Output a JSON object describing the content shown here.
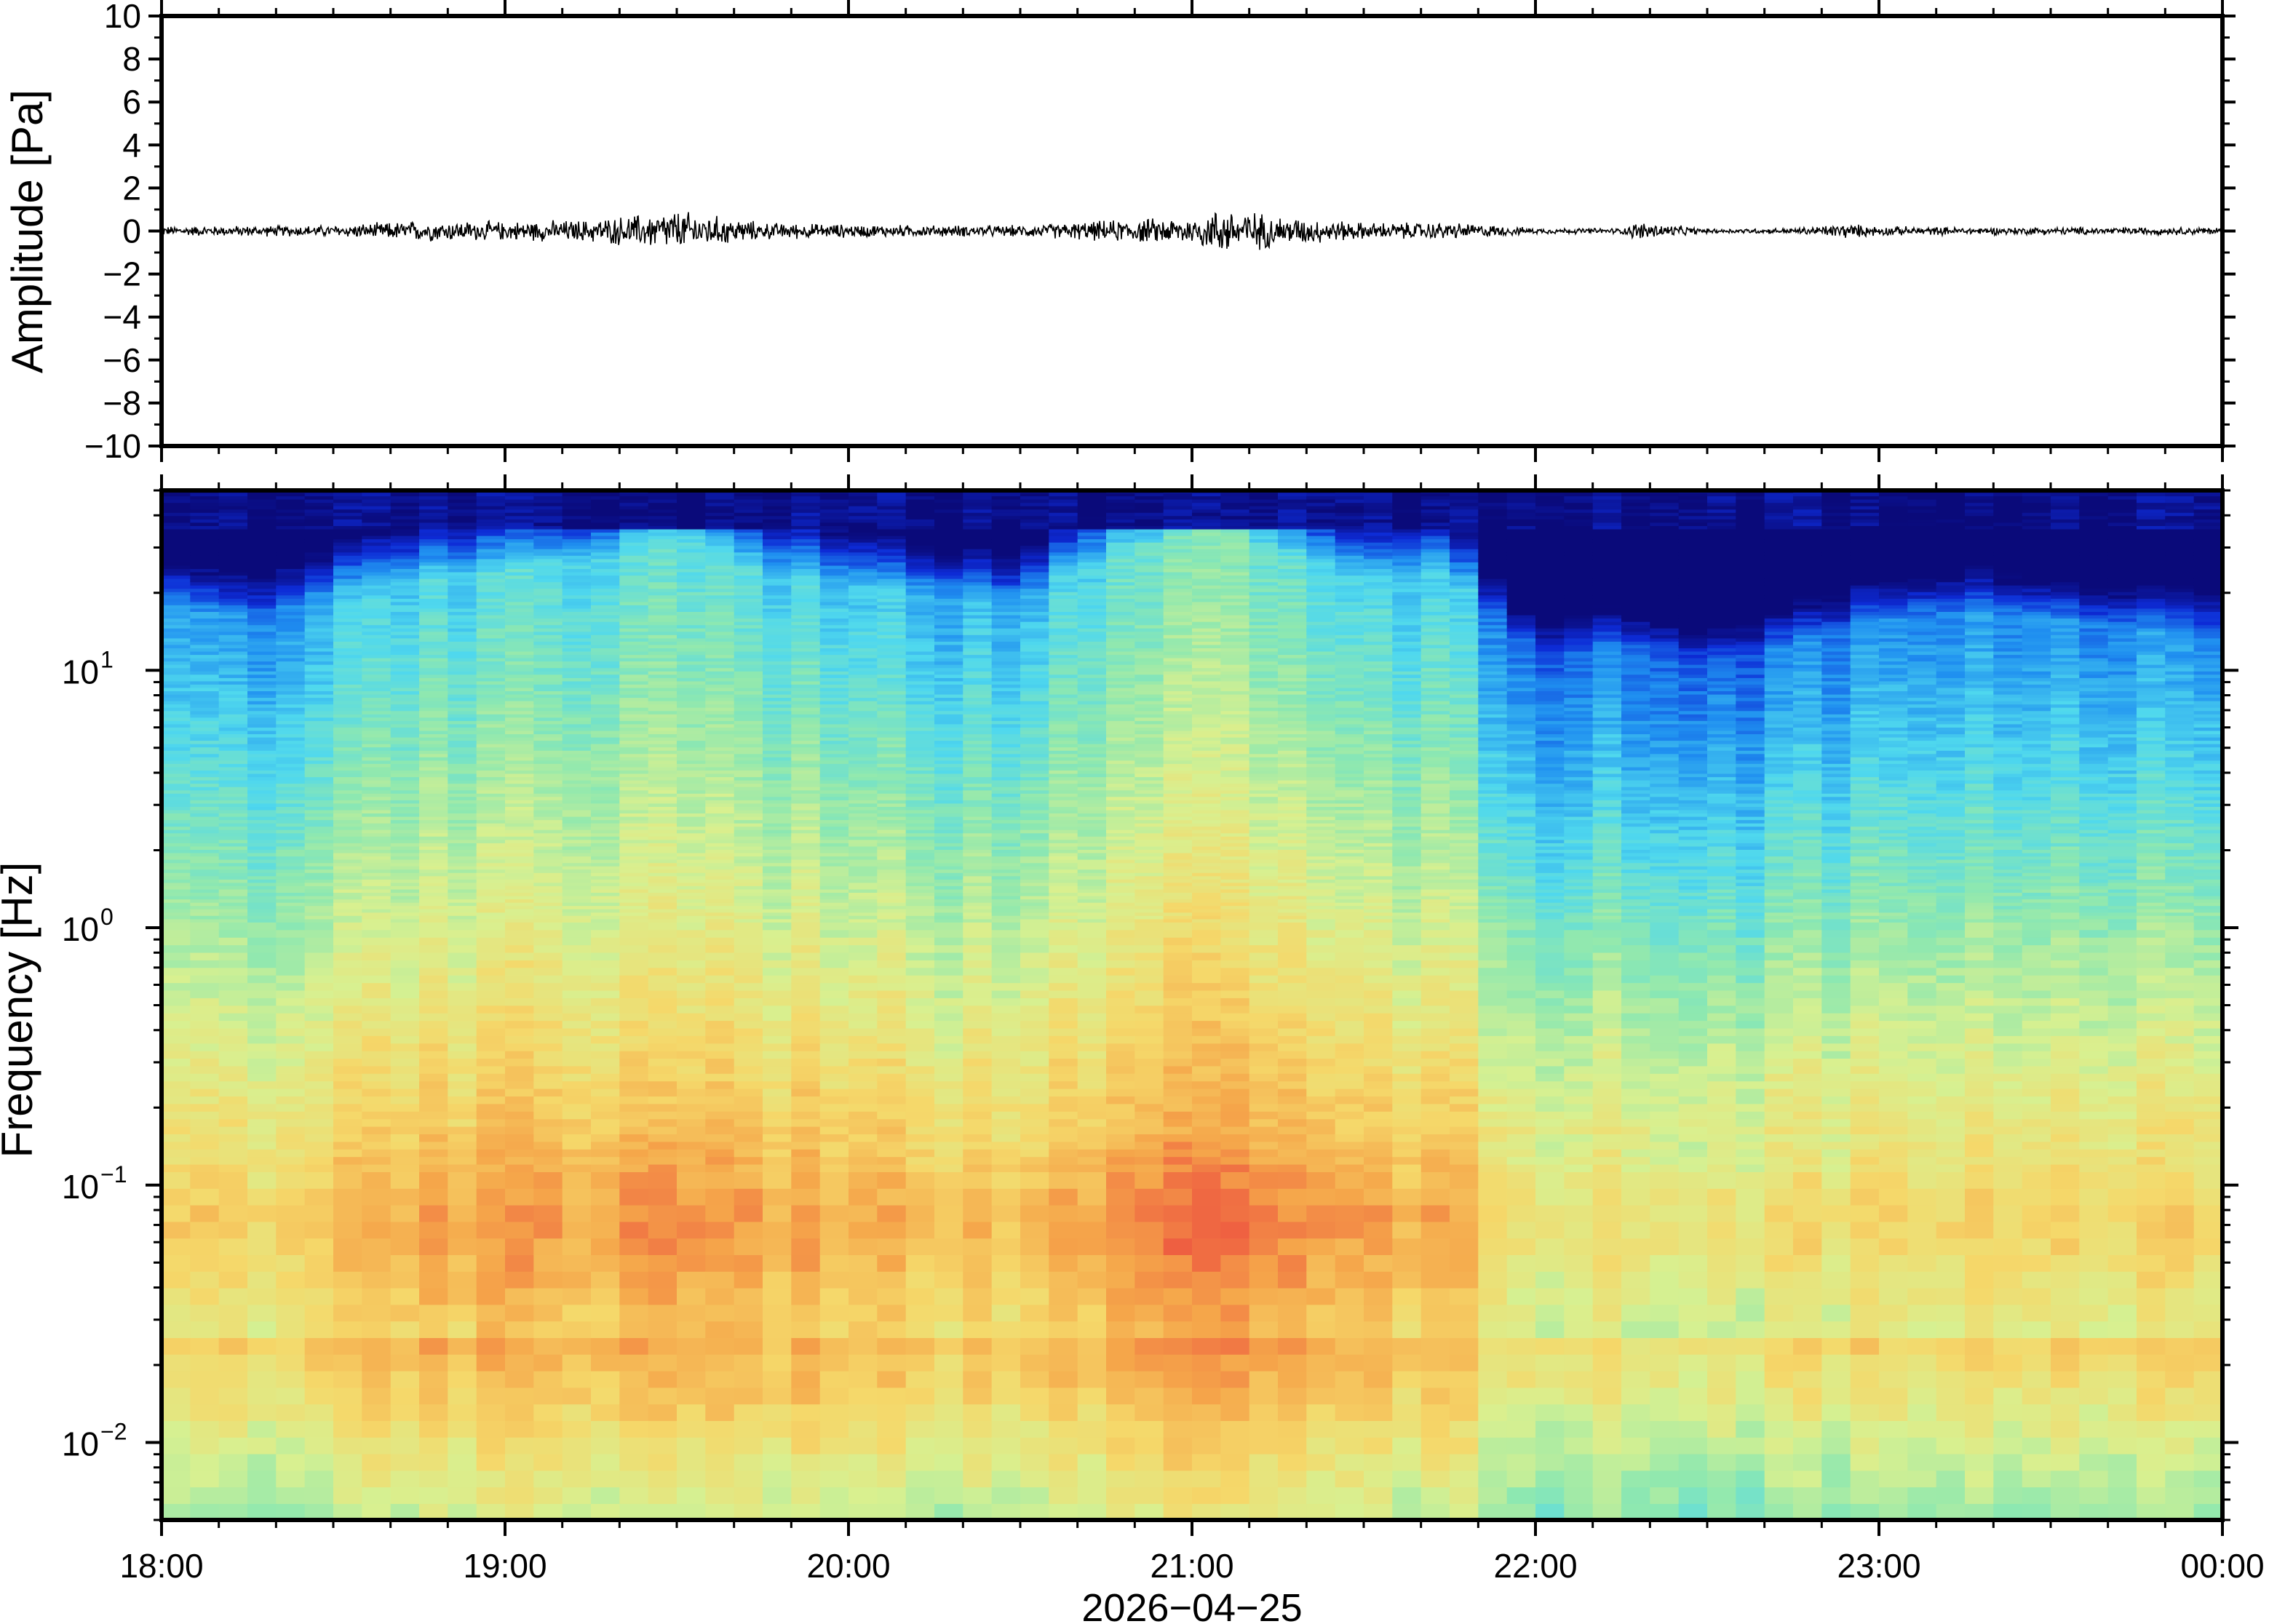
{
  "chart_data": [
    {
      "type": "line",
      "panel": "waveform",
      "ylabel": "Amplitude [Pa]",
      "ylim": [
        -10,
        10
      ],
      "yticks": [
        10,
        8,
        6,
        4,
        2,
        0,
        -2,
        -4,
        -6,
        -8,
        -10
      ],
      "ytick_labels": [
        "10",
        "8",
        "6",
        "4",
        "2",
        "0",
        "−2",
        "−4",
        "−6",
        "−8",
        "−10"
      ],
      "x_range_hours": [
        18,
        24
      ],
      "envelope": {
        "hours": [
          18.0,
          18.5,
          18.75,
          19.0,
          19.25,
          19.5,
          19.75,
          20.0,
          20.25,
          20.5,
          20.75,
          21.0,
          21.1,
          21.25,
          21.5,
          21.75,
          21.85,
          22.0,
          22.25,
          22.3,
          22.5,
          22.75,
          22.9,
          23.0,
          23.25,
          23.5,
          23.75,
          24.0
        ],
        "peak_pa": [
          0.25,
          0.3,
          0.55,
          0.5,
          0.6,
          1.1,
          0.45,
          0.35,
          0.3,
          0.3,
          0.55,
          0.75,
          1.3,
          0.8,
          0.45,
          0.45,
          0.35,
          0.15,
          0.15,
          0.5,
          0.12,
          0.15,
          0.4,
          0.25,
          0.2,
          0.2,
          0.2,
          0.2
        ]
      },
      "color": "#000000"
    },
    {
      "type": "heatmap",
      "panel": "spectrogram",
      "ylabel": "Frequency [Hz]",
      "yscale": "log",
      "ylim": [
        0.005,
        50
      ],
      "yticks": [
        0.01,
        0.1,
        1,
        10
      ],
      "ytick_labels": [
        {
          "base": "10",
          "exp": "−2"
        },
        {
          "base": "10",
          "exp": "−1"
        },
        {
          "base": "10",
          "exp": "0"
        },
        {
          "base": "10",
          "exp": "1"
        }
      ],
      "x_range_hours": [
        18,
        24
      ],
      "xticks": [
        "18:00",
        "19:00",
        "20:00",
        "21:00",
        "22:00",
        "23:00",
        "00:00"
      ],
      "xlabel": "2026−04−25",
      "colormap": [
        "#0a0a7a",
        "#0d2bd6",
        "#1f8ff0",
        "#4fd8ee",
        "#8ee8b0",
        "#d8f090",
        "#f5d86a",
        "#f5a64a",
        "#ee5a40"
      ],
      "activity": {
        "hours": [
          18.0,
          18.25,
          18.5,
          18.75,
          19.0,
          19.25,
          19.5,
          19.75,
          20.0,
          20.25,
          20.5,
          20.75,
          21.0,
          21.1,
          21.25,
          21.5,
          21.75,
          21.9,
          22.0,
          22.25,
          22.5,
          22.75,
          23.0,
          23.25,
          23.5,
          23.75,
          24.0
        ],
        "level": [
          0.55,
          0.45,
          0.6,
          0.7,
          0.75,
          0.8,
          0.95,
          0.75,
          0.65,
          0.6,
          0.55,
          0.85,
          0.95,
          1.0,
          0.85,
          0.7,
          0.75,
          0.4,
          0.25,
          0.3,
          0.2,
          0.3,
          0.45,
          0.5,
          0.45,
          0.4,
          0.35
        ]
      }
    }
  ]
}
